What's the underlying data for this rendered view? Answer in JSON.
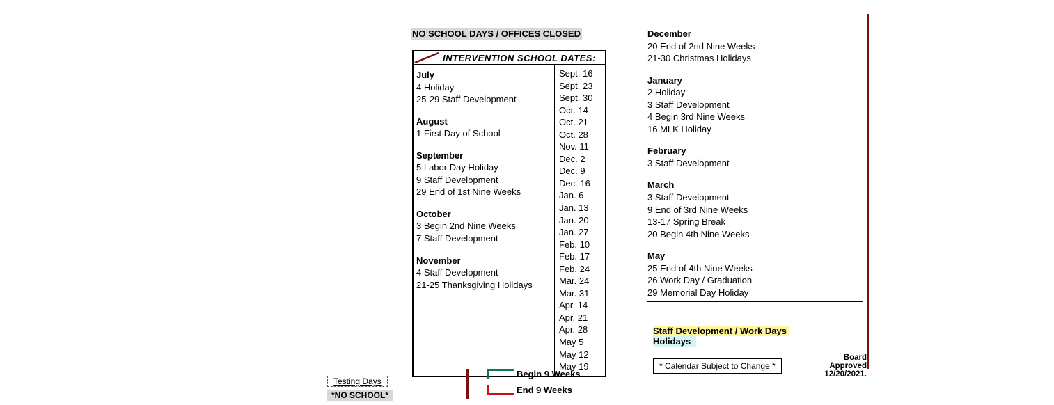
{
  "header": "NO SCHOOL DAYS / OFFICES CLOSED",
  "intervention_title": "INTERVENTION  SCHOOL  DATES:",
  "months_left": [
    {
      "name": "July",
      "lines": [
        "4  Holiday",
        "25-29  Staff Development"
      ]
    },
    {
      "name": "August",
      "lines": [
        "1  First Day of School"
      ]
    },
    {
      "name": "September",
      "lines": [
        "5  Labor Day Holiday",
        "9  Staff Development",
        "29  End of 1st Nine Weeks"
      ]
    },
    {
      "name": "October",
      "lines": [
        "3  Begin 2nd Nine Weeks",
        "7  Staff Development"
      ]
    },
    {
      "name": "November",
      "lines": [
        "4  Staff Development",
        "21-25  Thanksgiving Holidays"
      ]
    }
  ],
  "dates_list": [
    "Sept. 16",
    "Sept. 23",
    "Sept. 30",
    "Oct. 14",
    "Oct. 21",
    "Oct. 28",
    "Nov. 11",
    "Dec. 2",
    "Dec. 9",
    "Dec. 16",
    "Jan. 6",
    "Jan. 13",
    "Jan. 20",
    "Jan. 27",
    "Feb. 10",
    "Feb. 17",
    "Feb. 24",
    "Mar. 24",
    "Mar. 31",
    "Apr. 14",
    "Apr. 21",
    "Apr. 28",
    "May 5",
    "May 12",
    "May 19"
  ],
  "months_right": [
    {
      "name": "December",
      "lines": [
        "20  End of 2nd Nine Weeks",
        "21-30  Christmas Holidays"
      ]
    },
    {
      "name": "January",
      "lines": [
        "2   Holiday",
        "3   Staff Development",
        "4   Begin 3rd Nine Weeks",
        "16  MLK Holiday"
      ]
    },
    {
      "name": "February",
      "lines": [
        "3  Staff Development"
      ]
    },
    {
      "name": "March",
      "lines": [
        "3  Staff Development",
        "9  End of 3rd Nine Weeks",
        "13-17   Spring Break",
        "20  Begin 4th Nine Weeks"
      ]
    },
    {
      "name": "May",
      "lines": [
        "25  End of 4th Nine Weeks",
        "26  Work Day / Graduation",
        "29  Memorial Day Holiday"
      ]
    }
  ],
  "legend": {
    "staff_dev": "Staff Development / Work Days",
    "holidays": "Holidays",
    "staff_dev_bg": "#fff59a",
    "holidays_bg": "#d6f5f5"
  },
  "change_note": "* Calendar Subject to Change *",
  "board_approved_label": "Board Approved",
  "board_approved_date": "12/20/2021.",
  "testing_label": "Testing Days",
  "noschool_label": "*NO SCHOOL*",
  "begin_label": "Begin 9 Weeks",
  "end_label": "End 9 Weeks",
  "colors": {
    "dark_red": "#7a1010",
    "green": "#0b7a4a",
    "red": "#cc1010",
    "gray_bg": "#d8d8d8"
  }
}
